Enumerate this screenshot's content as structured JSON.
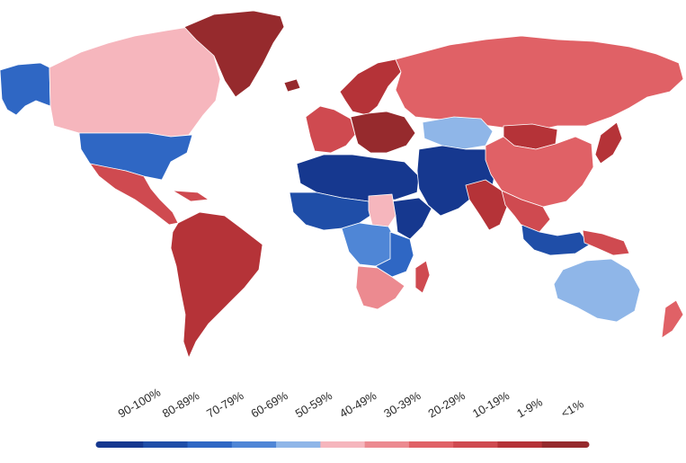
{
  "legend": {
    "bins": [
      {
        "label": "90-100%",
        "color": "#16388f"
      },
      {
        "label": "80-89%",
        "color": "#1f4ea8"
      },
      {
        "label": "70-79%",
        "color": "#2f67c4"
      },
      {
        "label": "60-69%",
        "color": "#4f86d6"
      },
      {
        "label": "50-59%",
        "color": "#8fb6e8"
      },
      {
        "label": "40-49%",
        "color": "#f6b6bd"
      },
      {
        "label": "30-39%",
        "color": "#ec8a90"
      },
      {
        "label": "20-29%",
        "color": "#e06166"
      },
      {
        "label": "10-19%",
        "color": "#cf4a50"
      },
      {
        "label": "1-9%",
        "color": "#b53338"
      },
      {
        "label": "<1%",
        "color": "#962a2d"
      }
    ]
  },
  "regions": [
    {
      "name": "alaska",
      "color": "#2f67c4"
    },
    {
      "name": "canada",
      "color": "#f6b6bd"
    },
    {
      "name": "greenland",
      "color": "#962a2d"
    },
    {
      "name": "iceland",
      "color": "#962a2d"
    },
    {
      "name": "united-states",
      "color": "#2f67c4"
    },
    {
      "name": "mexico-central-america",
      "color": "#cf4a50"
    },
    {
      "name": "caribbean",
      "color": "#cf4a50"
    },
    {
      "name": "south-america",
      "color": "#b53338"
    },
    {
      "name": "northern-europe",
      "color": "#b53338"
    },
    {
      "name": "western-europe",
      "color": "#cf4a50"
    },
    {
      "name": "eastern-europe",
      "color": "#962a2d"
    },
    {
      "name": "russia",
      "color": "#e06166"
    },
    {
      "name": "kazakhstan",
      "color": "#8fb6e8"
    },
    {
      "name": "north-africa",
      "color": "#16388f"
    },
    {
      "name": "middle-east",
      "color": "#16388f"
    },
    {
      "name": "west-africa",
      "color": "#1f4ea8"
    },
    {
      "name": "horn-of-africa",
      "color": "#16388f"
    },
    {
      "name": "sudan-region",
      "color": "#f6b6bd"
    },
    {
      "name": "central-africa",
      "color": "#4f86d6"
    },
    {
      "name": "east-africa",
      "color": "#2f67c4"
    },
    {
      "name": "southern-africa",
      "color": "#ec8a90"
    },
    {
      "name": "madagascar",
      "color": "#cf4a50"
    },
    {
      "name": "mongolia",
      "color": "#b53338"
    },
    {
      "name": "china",
      "color": "#e06166"
    },
    {
      "name": "india",
      "color": "#b53338"
    },
    {
      "name": "southeast-asia",
      "color": "#cf4a50"
    },
    {
      "name": "japan",
      "color": "#b53338"
    },
    {
      "name": "indonesia",
      "color": "#1f4ea8"
    },
    {
      "name": "papua",
      "color": "#cf4a50"
    },
    {
      "name": "australia",
      "color": "#8fb6e8"
    },
    {
      "name": "new-zealand",
      "color": "#e06166"
    }
  ]
}
